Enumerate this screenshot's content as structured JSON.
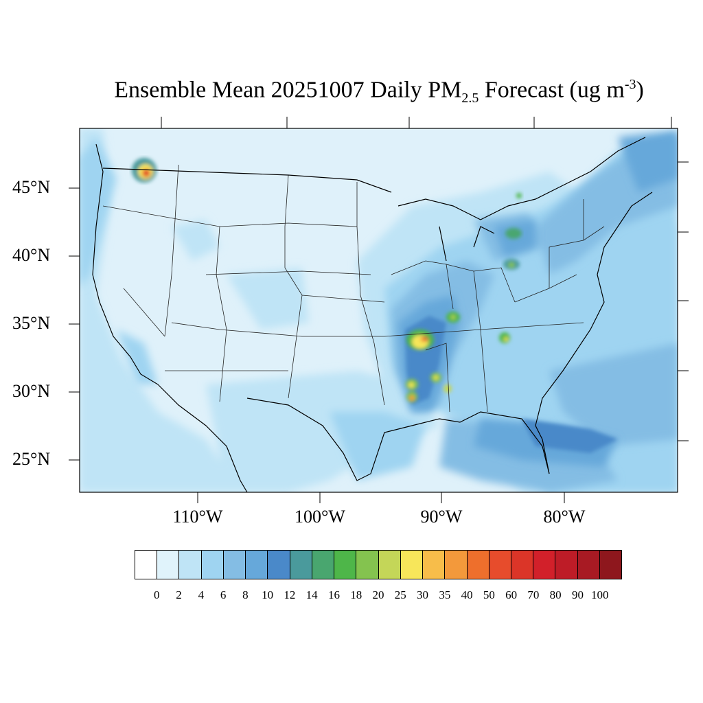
{
  "title": {
    "main": "Ensemble Mean 20251007 Daily PM",
    "subscript": "2.5",
    "units_prefix": " Forecast (ug m",
    "units_superscript": "-3",
    "units_suffix": ")"
  },
  "map": {
    "lat_labels": [
      "45°N",
      "40°N",
      "35°N",
      "30°N",
      "25°N"
    ],
    "lon_labels": [
      "110°W",
      "100°W",
      "90°W",
      "80°W"
    ],
    "background_color": "#dff1fa"
  },
  "colorbar": {
    "colors": [
      "#ffffff",
      "#e0f3fb",
      "#bfe4f6",
      "#9fd4f1",
      "#84bde4",
      "#66a8da",
      "#4a89c9",
      "#4a9a9c",
      "#49a66f",
      "#4eb649",
      "#84c34f",
      "#c4d658",
      "#f7e65a",
      "#f7bd4a",
      "#f3993b",
      "#ee6f2c",
      "#e74c2c",
      "#db3528",
      "#d2202a",
      "#be1c27",
      "#a81a23",
      "#8e171d"
    ],
    "labels": [
      "0",
      "2",
      "4",
      "6",
      "8",
      "10",
      "12",
      "14",
      "16",
      "18",
      "20",
      "25",
      "30",
      "35",
      "40",
      "50",
      "60",
      "70",
      "80",
      "90",
      "100"
    ]
  }
}
